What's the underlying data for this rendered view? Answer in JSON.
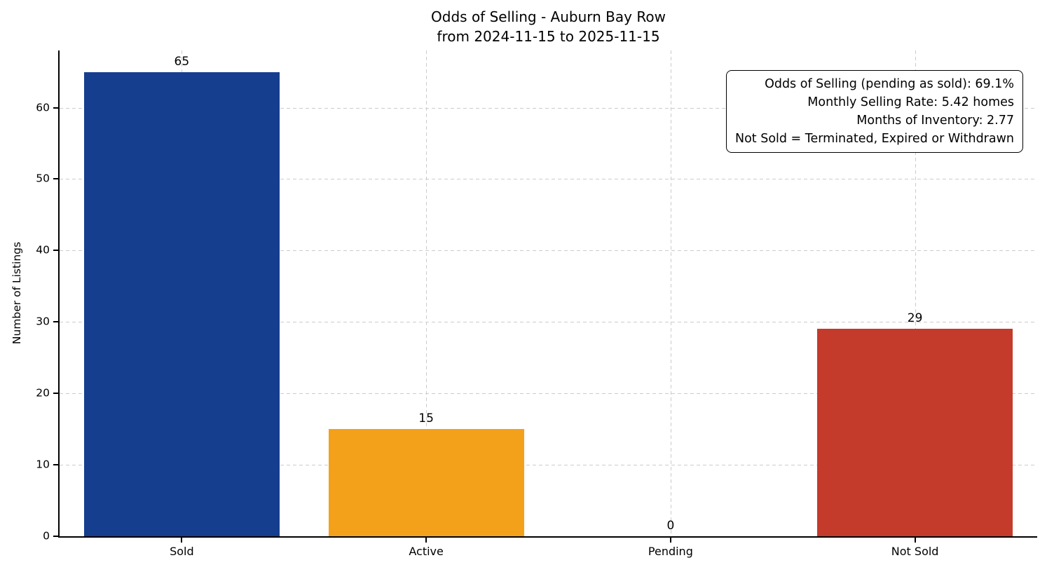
{
  "chart_data": {
    "type": "bar",
    "title": "Odds of Selling - Auburn Bay Row\nfrom 2024-11-15 to 2025-11-15",
    "title_line1": "Odds of Selling - Auburn Bay Row",
    "title_line2": "from 2024-11-15 to 2025-11-15",
    "xlabel": "",
    "ylabel": "Number of Listings",
    "categories": [
      "Sold",
      "Active",
      "Pending",
      "Not Sold"
    ],
    "values": [
      65,
      15,
      0,
      29
    ],
    "bar_colors": [
      "#153e8f",
      "#f3a11a",
      null,
      "#c43a2b"
    ],
    "ylim": [
      0,
      68
    ],
    "yticks": [
      0,
      10,
      20,
      30,
      40,
      50,
      60
    ],
    "grid": "dashed-both",
    "legend": "none",
    "annotation_position": "top-right",
    "annotation_lines": [
      "Odds of Selling (pending as sold): 69.1%",
      "Monthly Selling Rate: 5.42 homes",
      "Months of Inventory: 2.77",
      "Not Sold = Terminated, Expired or Withdrawn"
    ]
  }
}
